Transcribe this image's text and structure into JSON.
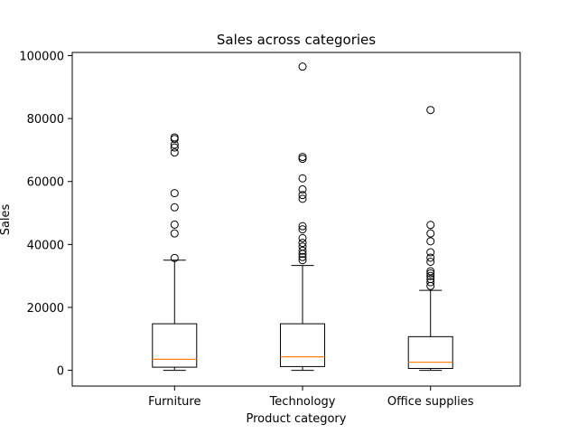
{
  "chart_data": {
    "type": "boxplot",
    "title": "Sales across categories",
    "xlabel": "Product category",
    "ylabel": "Sales",
    "ylim": [
      -5000,
      101000
    ],
    "yticks": [
      {
        "value": 0,
        "label": "0"
      },
      {
        "value": 20000,
        "label": "20000"
      },
      {
        "value": 40000,
        "label": "40000"
      },
      {
        "value": 60000,
        "label": "60000"
      },
      {
        "value": 80000,
        "label": "80000"
      },
      {
        "value": 100000,
        "label": "100000"
      }
    ],
    "grid": false,
    "colors": {
      "box": "#000000",
      "median": "#ff7f0e",
      "flier": "#000000"
    },
    "categories": [
      "Furniture",
      "Technology",
      "Office supplies"
    ],
    "boxes": [
      {
        "category": "Furniture",
        "whisker_low": 0,
        "q1": 1000,
        "median": 3500,
        "q3": 14800,
        "whisker_high": 35000,
        "outliers": [
          35700,
          43500,
          46300,
          51800,
          56300,
          69200,
          70800,
          71700,
          73500,
          74000
        ]
      },
      {
        "category": "Technology",
        "whisker_low": 0,
        "q1": 1200,
        "median": 4300,
        "q3": 14800,
        "whisker_high": 33300,
        "outliers": [
          35000,
          36000,
          37000,
          38000,
          39300,
          40500,
          42000,
          44800,
          45800,
          54500,
          55700,
          57500,
          61000,
          67200,
          67800,
          96500
        ]
      },
      {
        "category": "Office supplies",
        "whisker_low": 0,
        "q1": 600,
        "median": 2600,
        "q3": 10700,
        "whisker_high": 25400,
        "outliers": [
          26800,
          28000,
          29000,
          30000,
          30800,
          31500,
          34500,
          35800,
          37500,
          41000,
          43500,
          46200,
          82700
        ]
      }
    ]
  }
}
